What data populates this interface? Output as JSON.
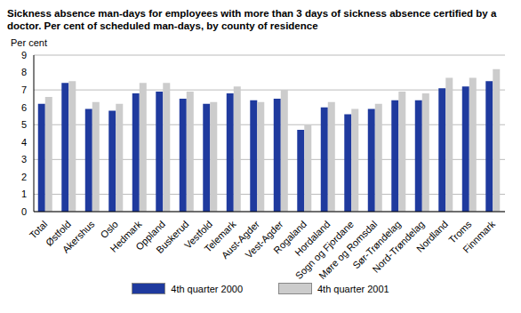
{
  "chart_data": {
    "type": "bar",
    "title": "Sickness absence man-days for employees with more than 3 days of sickness absence certified by a doctor. Per cent of scheduled man-days, by county of residence",
    "y_label": "Per cent",
    "categories": [
      "Total",
      "Østfold",
      "Akershus",
      "Oslo",
      "Hedmark",
      "Oppland",
      "Buskerud",
      "Vestfold",
      "Telemark",
      "Aust-Agder",
      "Vest-Agder",
      "Rogaland",
      "Hordaland",
      "Sogn og Fjordane",
      "Møre og Romsdal",
      "Sør-Trøndelag",
      "Nord-Trøndelag",
      "Nordland",
      "Troms",
      "Finnmark"
    ],
    "series": [
      {
        "name": "4th quarter 2000",
        "color": "#1f3a9e",
        "values": [
          6.2,
          7.4,
          5.9,
          5.8,
          6.8,
          6.9,
          6.5,
          6.2,
          6.8,
          6.4,
          6.5,
          4.7,
          6.0,
          5.6,
          5.9,
          6.4,
          6.4,
          7.1,
          7.2,
          7.5
        ]
      },
      {
        "name": "4th quarter 2001",
        "color": "#cccccc",
        "values": [
          6.6,
          7.5,
          6.3,
          6.2,
          7.4,
          7.4,
          6.9,
          6.3,
          7.2,
          6.3,
          7.0,
          5.0,
          6.3,
          5.9,
          6.2,
          6.9,
          6.8,
          7.7,
          7.7,
          8.2
        ]
      }
    ],
    "ylim": [
      0,
      9
    ],
    "yticks": [
      0,
      1,
      2,
      3,
      4,
      5,
      6,
      7,
      8,
      9
    ],
    "grid": true,
    "legend": "bottom"
  }
}
